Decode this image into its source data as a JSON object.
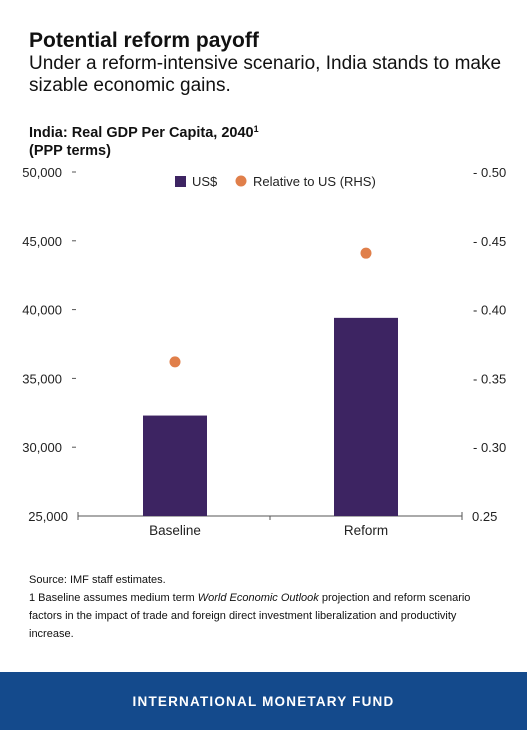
{
  "header": {
    "title": "Potential reform payoff",
    "subtitle": "Under a reform-intensive scenario, India stands to make sizable economic gains."
  },
  "chart_heading": {
    "line1": "India: Real GDP Per Capita, 2040",
    "footnote_mark": "1",
    "line2": "(PPP terms)"
  },
  "chart_data": {
    "type": "bar",
    "title": "India: Real GDP Per Capita, 2040",
    "categories": [
      "Baseline",
      "Reform"
    ],
    "series": [
      {
        "name": "US$",
        "type": "bar",
        "axis": "left",
        "color": "#3d2462",
        "values": [
          32300,
          39400
        ]
      },
      {
        "name": "Relative to US (RHS)",
        "type": "scatter",
        "axis": "right",
        "color": "#e07f4a",
        "values": [
          0.362,
          0.441
        ]
      }
    ],
    "ylim": [
      25000,
      50000
    ],
    "yticks": [
      "50,000",
      "45,000",
      "40,000",
      "35,000",
      "30,000",
      "25,000"
    ],
    "ylim_right": [
      0.25,
      0.5
    ],
    "yticks_right": [
      "0.50",
      "0.45",
      "0.40",
      "0.35",
      "0.30",
      "0.25"
    ],
    "legend_position": "top-center",
    "grid": false
  },
  "notes": {
    "source": "Source: IMF staff estimates.",
    "note_prefix": "1 Baseline assumes medium term ",
    "note_italic": "World Economic Outlook",
    "note_suffix": " projection and reform scenario factors in the impact of trade and foreign direct investment liberalization and productivity increase."
  },
  "footer": {
    "label": "INTERNATIONAL MONETARY FUND",
    "color": "#144a8c"
  }
}
